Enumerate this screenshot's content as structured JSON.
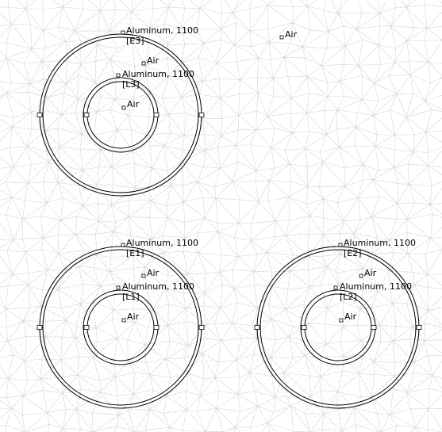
{
  "background_material": "Air",
  "assemblies": [
    {
      "outer_material": "Aluminum, 1100",
      "outer_tag": "[E3]",
      "gap_material": "Air",
      "inner_material": "Aluminum, 1100",
      "inner_tag": "[L3]",
      "core_material": "Air"
    },
    {
      "outer_material": "Aluminum, 1100",
      "outer_tag": "[E1]",
      "gap_material": "Air",
      "inner_material": "Aluminum, 1100",
      "inner_tag": "[L1]",
      "core_material": "Air"
    },
    {
      "outer_material": "Aluminum, 1100",
      "outer_tag": "[E2]",
      "gap_material": "Air",
      "inner_material": "Aluminum, 1100",
      "inner_tag": "[L2]",
      "core_material": "Air"
    }
  ]
}
